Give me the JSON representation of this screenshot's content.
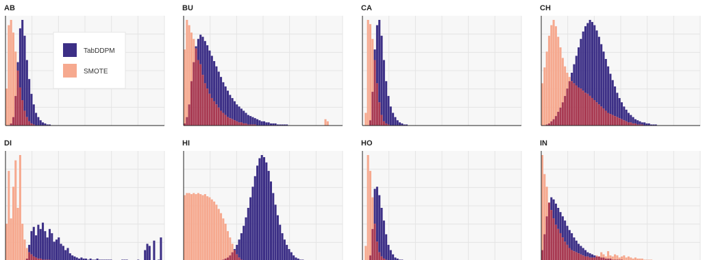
{
  "colors": {
    "tabddpm": "#3c2f86",
    "smote": "#f6a98f",
    "overlap": "#a83a52",
    "panel_bg": "#f7f7f7",
    "grid": "#e4e4e4",
    "axis": "#222222"
  },
  "legend": {
    "panel": "AB",
    "placement": "top-left inside first panel",
    "entries": [
      {
        "name": "TabDDPM",
        "color": "#3c2f86"
      },
      {
        "name": "SMOTE",
        "color": "#f6a98f"
      }
    ]
  },
  "chart_data": [
    {
      "type": "bar",
      "title": "AB",
      "grid": true,
      "series": [
        {
          "name": "TabDDPM",
          "values": [
            0,
            0,
            2,
            8,
            28,
            60,
            92,
            100,
            85,
            62,
            44,
            30,
            20,
            12,
            8,
            5,
            3,
            2,
            1,
            1,
            0,
            0,
            0,
            0,
            0,
            0,
            0,
            0,
            0,
            0,
            0,
            0,
            0,
            0,
            0,
            0,
            0,
            0,
            0,
            0,
            0,
            0,
            0,
            0,
            0,
            0,
            0,
            0,
            0,
            0,
            0,
            0,
            0,
            0,
            0,
            0,
            0,
            0,
            0,
            0,
            0,
            0,
            0,
            0,
            0,
            0,
            0,
            0,
            0,
            0
          ]
        },
        {
          "name": "SMOTE",
          "values": [
            35,
            95,
            100,
            88,
            70,
            52,
            36,
            24,
            14,
            8,
            4,
            2,
            1,
            0,
            0,
            0,
            0,
            0,
            0,
            0,
            0,
            0,
            0,
            0,
            0,
            0,
            0,
            0,
            0,
            0,
            0,
            0,
            0,
            0,
            0,
            0,
            0,
            0,
            0,
            0,
            0,
            0,
            0,
            0,
            0,
            0,
            0,
            0,
            0,
            0,
            0,
            0,
            0,
            0,
            0,
            0,
            0,
            0,
            0,
            0,
            0,
            0,
            0,
            0,
            0,
            0,
            0,
            0,
            0,
            0
          ]
        }
      ]
    },
    {
      "type": "bar",
      "title": "BU",
      "grid": true,
      "series": [
        {
          "name": "TabDDPM",
          "values": [
            2,
            8,
            20,
            42,
            60,
            75,
            82,
            86,
            84,
            80,
            76,
            71,
            66,
            61,
            56,
            51,
            46,
            41,
            37,
            33,
            29,
            26,
            23,
            20,
            18,
            16,
            14,
            12,
            10,
            9,
            8,
            7,
            6,
            5,
            4,
            4,
            3,
            3,
            2,
            2,
            2,
            1,
            1,
            1,
            1,
            1,
            0,
            0,
            0,
            0,
            0,
            0,
            0,
            0,
            0,
            0,
            0,
            0,
            0,
            0,
            0,
            0,
            0,
            0,
            0,
            0,
            0,
            0,
            0,
            0
          ]
        },
        {
          "name": "SMOTE",
          "values": [
            72,
            100,
            95,
            88,
            82,
            73,
            62,
            58,
            48,
            40,
            35,
            30,
            26,
            23,
            20,
            17,
            14,
            12,
            10,
            8,
            7,
            6,
            5,
            4,
            3,
            3,
            2,
            2,
            1,
            1,
            1,
            1,
            0,
            0,
            0,
            0,
            0,
            0,
            0,
            0,
            0,
            0,
            0,
            0,
            0,
            0,
            0,
            0,
            0,
            0,
            0,
            0,
            0,
            0,
            0,
            0,
            0,
            0,
            0,
            0,
            0,
            0,
            6,
            4,
            0,
            0,
            0,
            0,
            0,
            0
          ]
        }
      ]
    },
    {
      "type": "bar",
      "title": "CA",
      "grid": true,
      "series": [
        {
          "name": "TabDDPM",
          "values": [
            0,
            0,
            0,
            5,
            32,
            72,
            95,
            100,
            85,
            62,
            42,
            28,
            18,
            12,
            8,
            5,
            3,
            2,
            1,
            1,
            0,
            0,
            0,
            0,
            0,
            0,
            0,
            0,
            0,
            0,
            0,
            0,
            0,
            0,
            0,
            0,
            0,
            0,
            0,
            0,
            0,
            0,
            0,
            0,
            0,
            0,
            0,
            0,
            0,
            0,
            0,
            0,
            0,
            0,
            0,
            0,
            0,
            0,
            0,
            0,
            0,
            0,
            0,
            0,
            0,
            0,
            0,
            0,
            0,
            0
          ]
        },
        {
          "name": "SMOTE",
          "values": [
            0,
            12,
            100,
            96,
            82,
            62,
            40,
            22,
            10,
            4,
            2,
            1,
            0,
            0,
            0,
            0,
            0,
            0,
            0,
            0,
            0,
            0,
            0,
            0,
            0,
            0,
            0,
            0,
            0,
            0,
            0,
            0,
            0,
            0,
            0,
            0,
            0,
            0,
            0,
            0,
            0,
            0,
            0,
            0,
            0,
            0,
            0,
            0,
            0,
            0,
            0,
            0,
            0,
            0,
            0,
            0,
            0,
            0,
            0,
            0,
            0,
            0,
            0,
            0,
            0,
            0,
            0,
            0,
            0,
            0
          ]
        }
      ]
    },
    {
      "type": "bar",
      "title": "CH",
      "grid": true,
      "series": [
        {
          "name": "TabDDPM",
          "values": [
            0,
            0,
            1,
            2,
            4,
            6,
            9,
            13,
            17,
            22,
            28,
            35,
            42,
            50,
            58,
            66,
            74,
            82,
            89,
            94,
            97,
            100,
            98,
            95,
            90,
            84,
            77,
            70,
            63,
            56,
            49,
            43,
            37,
            31,
            26,
            22,
            18,
            15,
            12,
            10,
            8,
            6,
            5,
            4,
            3,
            3,
            2,
            2,
            1,
            1,
            1,
            0,
            0,
            0,
            0,
            0,
            0,
            0,
            0,
            0,
            0,
            0,
            0,
            0,
            0,
            0,
            0,
            0,
            0,
            0
          ]
        },
        {
          "name": "SMOTE",
          "values": [
            40,
            55,
            70,
            85,
            95,
            100,
            94,
            84,
            74,
            64,
            56,
            50,
            46,
            42,
            40,
            38,
            36,
            35,
            33,
            31,
            30,
            28,
            26,
            24,
            22,
            20,
            18,
            16,
            14,
            12,
            11,
            10,
            9,
            8,
            7,
            6,
            5,
            4,
            3,
            3,
            2,
            2,
            1,
            1,
            1,
            0,
            0,
            0,
            0,
            0,
            0,
            0,
            0,
            0,
            0,
            0,
            0,
            0,
            0,
            0,
            0,
            0,
            0,
            0,
            0,
            0,
            0,
            0,
            0,
            0
          ]
        }
      ]
    },
    {
      "type": "bar",
      "title": "DI",
      "grid": true,
      "series": [
        {
          "name": "TabDDPM",
          "values": [
            0,
            0,
            0,
            0,
            0,
            0,
            0,
            0,
            0,
            2,
            15,
            28,
            32,
            24,
            34,
            30,
            36,
            28,
            22,
            30,
            26,
            18,
            20,
            22,
            16,
            14,
            10,
            12,
            7,
            5,
            4,
            3,
            2,
            3,
            2,
            2,
            1,
            2,
            1,
            1,
            2,
            1,
            1,
            1,
            1,
            1,
            1,
            0,
            0,
            0,
            0,
            1,
            1,
            1,
            0,
            0,
            0,
            0,
            1,
            0,
            0,
            10,
            16,
            14,
            0,
            19,
            0,
            1,
            22,
            0
          ]
        },
        {
          "name": "SMOTE",
          "values": [
            35,
            85,
            40,
            70,
            95,
            50,
            100,
            35,
            20,
            12,
            8,
            6,
            4,
            3,
            2,
            2,
            1,
            1,
            1,
            1,
            0,
            0,
            0,
            0,
            0,
            0,
            0,
            0,
            0,
            0,
            0,
            0,
            0,
            0,
            0,
            0,
            0,
            0,
            0,
            0,
            0,
            0,
            0,
            0,
            0,
            0,
            0,
            0,
            0,
            0,
            0,
            0,
            0,
            0,
            0,
            0,
            0,
            0,
            0,
            0,
            0,
            0,
            0,
            0,
            0,
            0,
            0,
            0,
            0,
            0
          ]
        }
      ]
    },
    {
      "type": "bar",
      "title": "HI",
      "grid": true,
      "series": [
        {
          "name": "TabDDPM",
          "values": [
            0,
            0,
            0,
            0,
            0,
            0,
            0,
            0,
            0,
            0,
            0,
            0,
            0,
            0,
            0,
            0,
            0,
            1,
            2,
            3,
            5,
            8,
            11,
            15,
            20,
            26,
            33,
            41,
            50,
            60,
            70,
            80,
            90,
            97,
            100,
            98,
            93,
            85,
            75,
            64,
            53,
            43,
            34,
            26,
            20,
            15,
            11,
            8,
            5,
            3,
            2,
            1,
            1,
            0,
            0,
            0,
            0,
            0,
            0,
            0,
            0,
            0,
            0,
            0,
            0,
            0,
            0,
            0,
            0,
            0
          ]
        },
        {
          "name": "SMOTE",
          "values": [
            62,
            64,
            64,
            63,
            64,
            63,
            64,
            63,
            62,
            63,
            61,
            60,
            58,
            56,
            53,
            49,
            45,
            40,
            35,
            28,
            22,
            16,
            10,
            6,
            3,
            1,
            0,
            0,
            0,
            0,
            0,
            0,
            0,
            0,
            0,
            0,
            0,
            0,
            0,
            0,
            0,
            0,
            0,
            0,
            0,
            0,
            0,
            0,
            0,
            0,
            0,
            0,
            0,
            0,
            0,
            0,
            0,
            0,
            0,
            0,
            0,
            0,
            0,
            0,
            0,
            0,
            0,
            0,
            0,
            0
          ]
        }
      ]
    },
    {
      "type": "bar",
      "title": "HO",
      "grid": true,
      "series": [
        {
          "name": "TabDDPM",
          "values": [
            0,
            0,
            0,
            5,
            30,
            68,
            70,
            62,
            50,
            38,
            25,
            15,
            10,
            6,
            3,
            2,
            1,
            1,
            0,
            0,
            0,
            0,
            0,
            0,
            0,
            0,
            0,
            0,
            0,
            0,
            0,
            0,
            0,
            0,
            0,
            0,
            0,
            0,
            0,
            0,
            0,
            0,
            0,
            0,
            0,
            0,
            0,
            0,
            0,
            0,
            0,
            0,
            0,
            0,
            0,
            0,
            0,
            0,
            0,
            0,
            0,
            0,
            0,
            0,
            0,
            0,
            0,
            0,
            0,
            0
          ]
        },
        {
          "name": "SMOTE",
          "values": [
            0,
            14,
            100,
            85,
            60,
            35,
            18,
            8,
            4,
            2,
            1,
            0,
            0,
            0,
            0,
            0,
            0,
            0,
            0,
            0,
            0,
            0,
            0,
            0,
            0,
            0,
            0,
            0,
            0,
            0,
            0,
            0,
            0,
            0,
            0,
            0,
            0,
            0,
            0,
            0,
            0,
            0,
            0,
            0,
            0,
            0,
            0,
            0,
            0,
            0,
            0,
            0,
            0,
            0,
            0,
            0,
            0,
            0,
            0,
            0,
            0,
            0,
            0,
            0,
            0,
            0,
            0,
            0,
            0,
            0
          ]
        }
      ]
    },
    {
      "type": "bar",
      "title": "IN",
      "grid": true,
      "series": [
        {
          "name": "TabDDPM",
          "values": [
            10,
            25,
            42,
            55,
            60,
            58,
            54,
            50,
            46,
            42,
            38,
            33,
            29,
            26,
            22,
            19,
            16,
            14,
            12,
            10,
            8,
            7,
            6,
            5,
            4,
            4,
            3,
            3,
            2,
            2,
            2,
            1,
            1,
            1,
            1,
            1,
            0,
            0,
            0,
            0,
            0,
            0,
            0,
            0,
            0,
            0,
            0,
            0,
            0,
            0,
            0,
            0,
            0,
            0,
            0,
            0,
            0,
            0,
            0,
            0,
            0,
            0,
            0,
            0,
            0,
            0,
            0,
            0,
            0,
            0
          ]
        },
        {
          "name": "SMOTE",
          "values": [
            100,
            82,
            70,
            55,
            48,
            40,
            34,
            30,
            26,
            22,
            18,
            15,
            12,
            10,
            9,
            8,
            7,
            6,
            5,
            4,
            4,
            3,
            3,
            3,
            5,
            4,
            8,
            6,
            4,
            9,
            5,
            4,
            6,
            5,
            3,
            4,
            5,
            3,
            4,
            3,
            2,
            3,
            2,
            2,
            2,
            1,
            1,
            1,
            1,
            0,
            0,
            0,
            0,
            0,
            0,
            0,
            0,
            0,
            0,
            0,
            0,
            0,
            0,
            0,
            0,
            0,
            0,
            0,
            0,
            0
          ]
        }
      ]
    }
  ]
}
